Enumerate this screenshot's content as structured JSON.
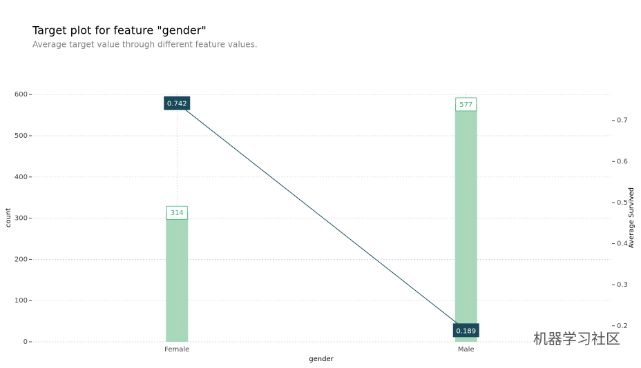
{
  "chart_data": {
    "type": "bar_line",
    "title": "Target plot for feature \"gender\"",
    "subtitle": "Average target value through different feature values.",
    "x_label": "gender",
    "y_label": "count",
    "y2_label": "Average Survived",
    "categories": [
      "Female",
      "Male"
    ],
    "series": [
      {
        "color": "#a8d8b9",
        "values": [
          314,
          577
        ]
      },
      {
        "color": "#1a4a5a",
        "values": [
          0.742,
          0.189
        ],
        "axis": "y2"
      }
    ],
    "ylim": [
      0,
      607
    ],
    "yticks": [
      0,
      100,
      200,
      300,
      400,
      500,
      600
    ],
    "y2lim": [
      0.161,
      0.77
    ],
    "y2ticks": [
      0.2,
      0.3,
      0.4,
      0.5,
      0.6,
      0.7
    ],
    "grid": true,
    "watermark": "机器学习社区"
  }
}
